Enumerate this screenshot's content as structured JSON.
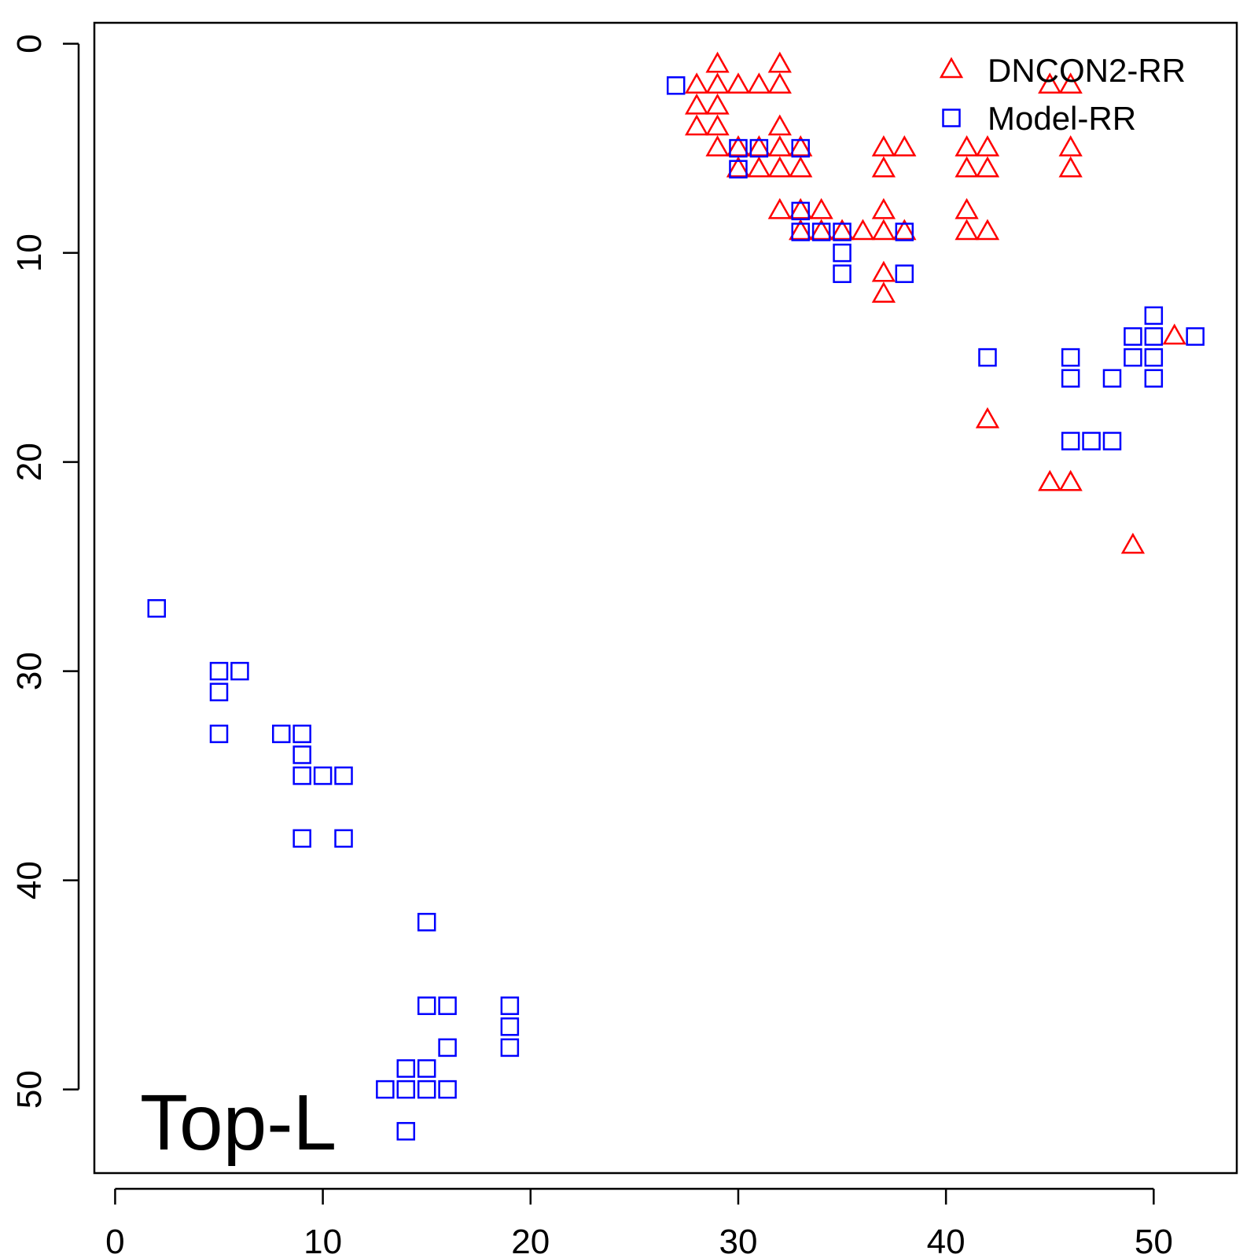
{
  "chart_data": {
    "type": "scatter",
    "title": "",
    "xlabel": "",
    "ylabel": "",
    "xlim": [
      -1,
      54
    ],
    "ylim": [
      54,
      -1
    ],
    "y_reversed": true,
    "x_ticks": [
      0,
      10,
      20,
      30,
      40,
      50
    ],
    "y_ticks": [
      0,
      10,
      20,
      30,
      40,
      50
    ],
    "grid": false,
    "legend_position": "top-right",
    "annotation": "Top-L",
    "series": [
      {
        "name": "DNCON2-RR",
        "marker": "triangle",
        "color": "#ff0000",
        "points": [
          [
            28,
            2
          ],
          [
            28,
            3
          ],
          [
            28,
            4
          ],
          [
            29,
            1
          ],
          [
            29,
            2
          ],
          [
            29,
            3
          ],
          [
            29,
            4
          ],
          [
            29,
            5
          ],
          [
            30,
            2
          ],
          [
            30,
            5
          ],
          [
            30,
            6
          ],
          [
            31,
            2
          ],
          [
            31,
            5
          ],
          [
            31,
            6
          ],
          [
            32,
            1
          ],
          [
            32,
            2
          ],
          [
            32,
            4
          ],
          [
            32,
            5
          ],
          [
            32,
            6
          ],
          [
            32,
            8
          ],
          [
            33,
            5
          ],
          [
            33,
            6
          ],
          [
            33,
            8
          ],
          [
            33,
            9
          ],
          [
            34,
            8
          ],
          [
            34,
            9
          ],
          [
            35,
            9
          ],
          [
            36,
            9
          ],
          [
            37,
            5
          ],
          [
            37,
            6
          ],
          [
            37,
            8
          ],
          [
            37,
            9
          ],
          [
            37,
            11
          ],
          [
            37,
            12
          ],
          [
            38,
            5
          ],
          [
            38,
            9
          ],
          [
            41,
            5
          ],
          [
            41,
            6
          ],
          [
            41,
            8
          ],
          [
            41,
            9
          ],
          [
            42,
            5
          ],
          [
            42,
            6
          ],
          [
            42,
            9
          ],
          [
            42,
            18
          ],
          [
            45,
            2
          ],
          [
            45,
            21
          ],
          [
            46,
            2
          ],
          [
            46,
            5
          ],
          [
            46,
            6
          ],
          [
            46,
            21
          ],
          [
            49,
            24
          ],
          [
            51,
            14
          ]
        ]
      },
      {
        "name": "Model-RR",
        "marker": "square",
        "color": "#0000ff",
        "points": [
          [
            2,
            27
          ],
          [
            5,
            30
          ],
          [
            5,
            31
          ],
          [
            5,
            33
          ],
          [
            6,
            30
          ],
          [
            8,
            33
          ],
          [
            9,
            33
          ],
          [
            9,
            34
          ],
          [
            9,
            35
          ],
          [
            9,
            38
          ],
          [
            10,
            35
          ],
          [
            11,
            35
          ],
          [
            11,
            38
          ],
          [
            13,
            50
          ],
          [
            14,
            49
          ],
          [
            14,
            50
          ],
          [
            14,
            52
          ],
          [
            15,
            42
          ],
          [
            15,
            46
          ],
          [
            15,
            49
          ],
          [
            15,
            50
          ],
          [
            16,
            46
          ],
          [
            16,
            48
          ],
          [
            16,
            50
          ],
          [
            19,
            46
          ],
          [
            19,
            47
          ],
          [
            19,
            48
          ],
          [
            27,
            2
          ],
          [
            30,
            5
          ],
          [
            30,
            6
          ],
          [
            31,
            5
          ],
          [
            33,
            5
          ],
          [
            33,
            8
          ],
          [
            33,
            9
          ],
          [
            34,
            9
          ],
          [
            35,
            9
          ],
          [
            35,
            10
          ],
          [
            35,
            11
          ],
          [
            38,
            9
          ],
          [
            38,
            11
          ],
          [
            42,
            15
          ],
          [
            46,
            15
          ],
          [
            46,
            16
          ],
          [
            46,
            19
          ],
          [
            47,
            19
          ],
          [
            48,
            16
          ],
          [
            48,
            19
          ],
          [
            49,
            14
          ],
          [
            49,
            15
          ],
          [
            50,
            13
          ],
          [
            50,
            14
          ],
          [
            50,
            15
          ],
          [
            50,
            16
          ],
          [
            52,
            14
          ]
        ]
      }
    ]
  }
}
